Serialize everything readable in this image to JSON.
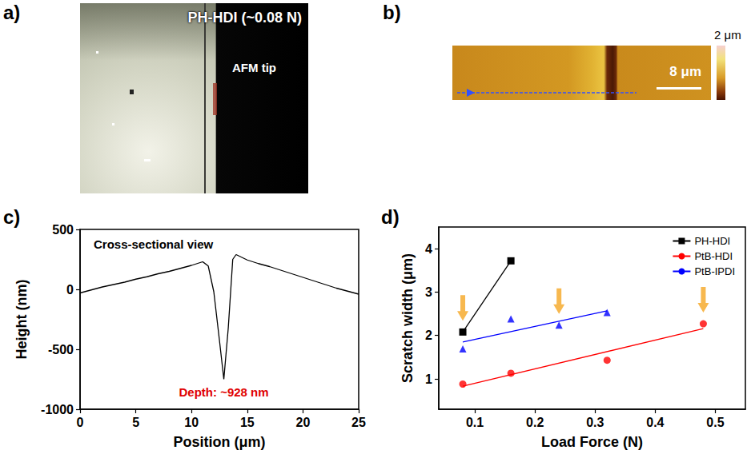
{
  "chart_data": [
    {
      "type": "photo",
      "panel": "a)",
      "labels": [
        "PH-HDI (~0.08 N)",
        "AFM tip"
      ]
    },
    {
      "type": "image",
      "panel": "b)",
      "colorbar_label": "2 μm",
      "scale_bar_label": "8 μm"
    },
    {
      "type": "line",
      "panel": "c)",
      "title": "Cross-sectional view",
      "x_label": "Position (μm)",
      "y_label": "Height (nm)",
      "x": [
        0,
        1,
        2,
        3,
        4,
        5,
        6,
        7,
        8,
        9,
        10,
        10.5,
        11,
        11.5,
        12,
        12.5,
        12.9,
        13.3,
        13.7,
        14,
        15,
        16,
        17,
        18,
        19,
        20,
        21,
        22,
        23,
        24,
        25
      ],
      "values": [
        -30,
        -5,
        20,
        40,
        60,
        85,
        105,
        130,
        150,
        175,
        200,
        215,
        230,
        195,
        -20,
        -420,
        -750,
        -320,
        250,
        290,
        245,
        215,
        190,
        160,
        130,
        100,
        70,
        40,
        10,
        -15,
        -40
      ],
      "color": "#000000",
      "xlim": [
        0,
        25
      ],
      "xticks": [
        0,
        5,
        10,
        15,
        20,
        25
      ],
      "ylim": [
        -1000,
        500
      ],
      "yticks": [
        -1000,
        -500,
        0,
        500
      ],
      "annotation": "Depth: ~928 nm",
      "annotation_color": "#e00000",
      "grid": false
    },
    {
      "type": "scatter",
      "panel": "d)",
      "x_label": "Load Force (N)",
      "y_label": "Scratch width (μm)",
      "xlim": [
        0.04,
        0.55
      ],
      "xticks": [
        0.1,
        0.2,
        0.3,
        0.4,
        0.5
      ],
      "ylim": [
        0.3,
        4.5
      ],
      "yticks": [
        1,
        2,
        3,
        4
      ],
      "legend": "top-right",
      "grid": false,
      "series": [
        {
          "name": "PH-HDI",
          "type": "line",
          "marker": "square",
          "color": "#000000",
          "x": [
            0.08,
            0.16
          ],
          "values": [
            2.08,
            3.72
          ]
        },
        {
          "name": "PtB-HDI",
          "type": "scatter",
          "marker": "circle",
          "color": "#ff0000",
          "x": [
            0.08,
            0.16,
            0.32,
            0.48
          ],
          "values": [
            0.88,
            1.13,
            1.43,
            2.27
          ],
          "fit_x": [
            0.08,
            0.48
          ],
          "fit_values": [
            0.83,
            2.16
          ]
        },
        {
          "name": "PtB-IPDI",
          "type": "scatter",
          "marker": "triangle",
          "color": "#0000ff",
          "x": [
            0.08,
            0.16,
            0.24,
            0.32
          ],
          "values": [
            1.69,
            2.38,
            2.24,
            2.53
          ],
          "fit_x": [
            0.08,
            0.32
          ],
          "fit_values": [
            1.85,
            2.57
          ]
        }
      ],
      "arrows": {
        "x": [
          0.08,
          0.24,
          0.48
        ],
        "y": [
          2.08,
          2.24,
          2.27
        ],
        "color": "#f5a623"
      }
    }
  ]
}
